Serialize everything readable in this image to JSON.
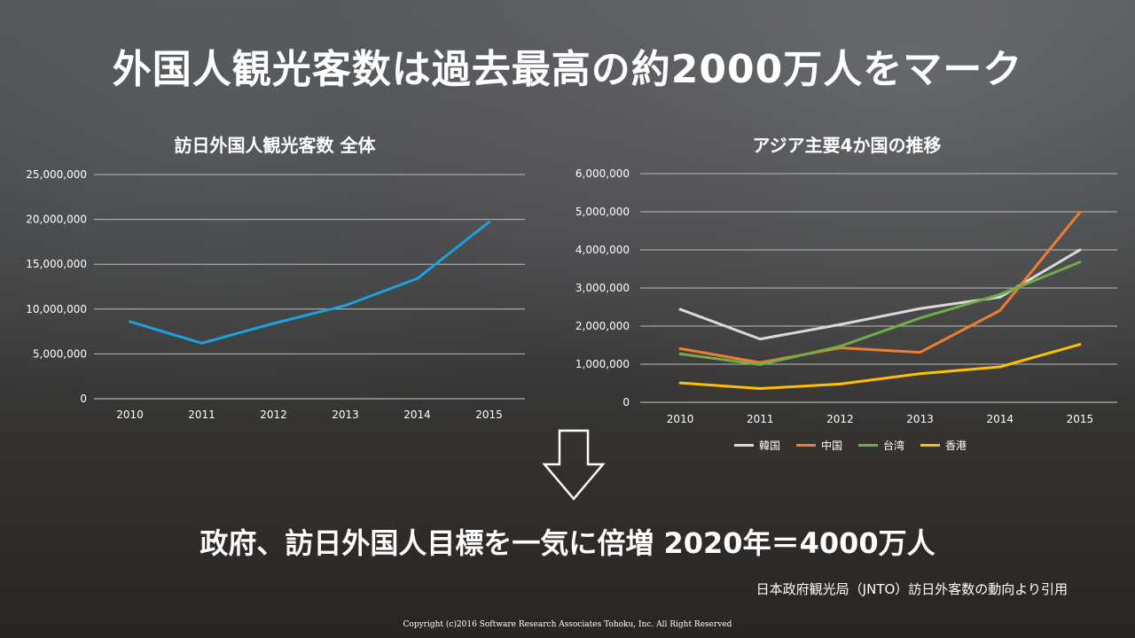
{
  "slide": {
    "title": "外国人観光客数は過去最高の約2000万人をマーク",
    "goal_text": "政府、訪日外国人目標を一気に倍増 2020年＝4000万人",
    "source_text": "日本政府観光局（JNTO）訪日外客数の動向より引用",
    "copyright": "Copyright (c)2016 Software Research Associates Tohoku, Inc. All Right Reserved",
    "arrow_icon": "down-arrow-icon"
  },
  "chart_data": [
    {
      "type": "line",
      "title": "訪日外国人観光客数 全体",
      "categories": [
        "2010",
        "2011",
        "2012",
        "2013",
        "2014",
        "2015"
      ],
      "y_ticks": [
        "0",
        "5,000,000",
        "10,000,000",
        "15,000,000",
        "20,000,000",
        "25,000,000"
      ],
      "ylim": [
        0,
        25000000
      ],
      "grid": true,
      "series": [
        {
          "color": "#1ea0dc",
          "values": [
            8600000,
            6200000,
            8400000,
            10400000,
            13400000,
            19700000
          ]
        }
      ]
    },
    {
      "type": "line",
      "title": "アジア主要4か国の推移",
      "categories": [
        "2010",
        "2011",
        "2012",
        "2013",
        "2014",
        "2015"
      ],
      "y_ticks": [
        "0",
        "1,000,000",
        "2,000,000",
        "3,000,000",
        "4,000,000",
        "5,000,000",
        "6,000,000"
      ],
      "ylim": [
        0,
        6000000
      ],
      "grid": true,
      "legend_position": "bottom",
      "series": [
        {
          "name": "韓国",
          "color": "#d9d9d9",
          "values": [
            2440000,
            1660000,
            2040000,
            2460000,
            2760000,
            4000000
          ]
        },
        {
          "name": "中国",
          "color": "#ed7d31",
          "values": [
            1410000,
            1040000,
            1430000,
            1310000,
            2410000,
            4990000
          ]
        },
        {
          "name": "台湾",
          "color": "#70ad47",
          "values": [
            1270000,
            990000,
            1470000,
            2210000,
            2830000,
            3680000
          ]
        },
        {
          "name": "香港",
          "color": "#ffc000",
          "values": [
            510000,
            360000,
            480000,
            750000,
            930000,
            1520000
          ]
        }
      ]
    }
  ]
}
